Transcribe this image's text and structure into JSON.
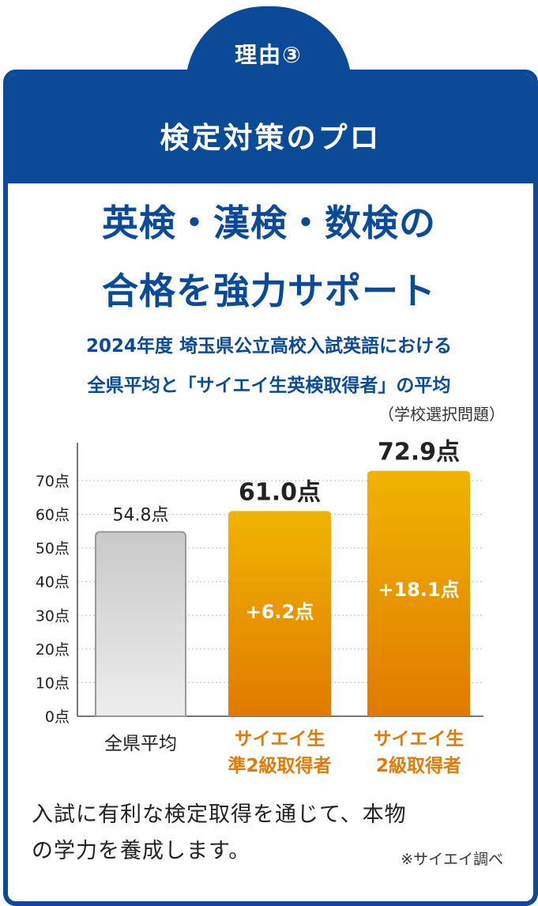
{
  "tab": {
    "label": "理由③"
  },
  "header": {
    "title": "検定対策のプロ"
  },
  "headline": {
    "line1": "英検・漢検・数検の",
    "line2": "合格を強力サポート"
  },
  "subtitle": {
    "line1": "2024年度 埼玉県公立高校入試英語における",
    "line2": "全県平均と「サイエイ生英検取得者」の平均",
    "note": "（学校選択問題）"
  },
  "colors": {
    "brand": "#0b4a97",
    "accent": "#e07a0a",
    "bar_orange_top": "#f0b400",
    "bar_orange_bottom": "#e07a00",
    "bar_gray": "#d9d9d9"
  },
  "chart_data": {
    "type": "bar",
    "categories": [
      "全県平均",
      "サイエイ生\n準2級取得者",
      "サイエイ生\n2級取得者"
    ],
    "values": [
      54.8,
      61.0,
      72.9
    ],
    "value_labels": [
      "54.8点",
      "61.0点",
      "72.9点"
    ],
    "diff_labels": [
      "",
      "+6.2点",
      "+18.1点"
    ],
    "yticks": [
      0,
      10,
      20,
      30,
      40,
      50,
      60,
      70
    ],
    "ytick_labels": [
      "0点",
      "10点",
      "20点",
      "30点",
      "40点",
      "50点",
      "60点",
      "70点"
    ],
    "ylim": [
      0,
      80
    ],
    "grid": true
  },
  "body": {
    "line1": "入試に有利な検定取得を通じて、本物",
    "line2": "の学力を養成します。",
    "source": "※サイエイ調べ"
  }
}
